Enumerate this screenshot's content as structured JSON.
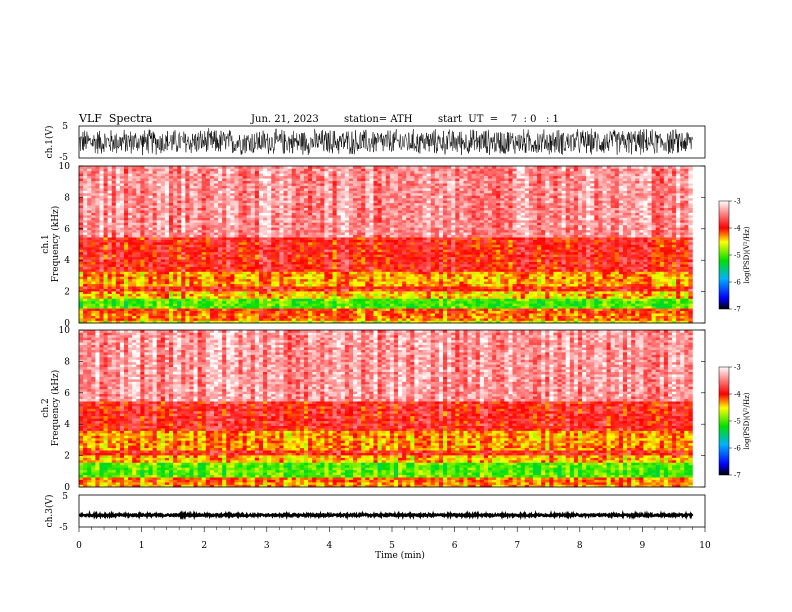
{
  "header": {
    "title": "VLF  Spectra",
    "date": "Jun. 21, 2023",
    "station": "station= ATH",
    "start_ut": "start  UT  =    7  : 0   : 1"
  },
  "chart_data": [
    {
      "type": "line",
      "panel": "ch1-waveform",
      "ylabel": "ch.1(V)",
      "xlim": [
        0,
        10
      ],
      "ylim": [
        -5,
        5
      ],
      "y_ticks": [
        "5",
        "-5"
      ],
      "signal_amplitude": [
        -4.5,
        4.5
      ],
      "data_end_min": 9.8
    },
    {
      "type": "heatmap",
      "panel": "ch1-spectrogram",
      "ylabel": [
        "ch.1",
        "Frequency  (kHz)"
      ],
      "xlim": [
        0,
        10
      ],
      "ylim": [
        0,
        10
      ],
      "y_ticks": [
        "10",
        "8",
        "6",
        "4",
        "2",
        "0"
      ],
      "colorbar": {
        "label": "log(PSD)(V²/Hz)",
        "range": [
          -7,
          -3
        ],
        "ticks": [
          "-3",
          "-4",
          "-5",
          "-6",
          "-7"
        ]
      },
      "bands_khz_log_psd": [
        {
          "f": [
            0,
            0.2
          ],
          "v": -4.6
        },
        {
          "f": [
            0.2,
            0.6
          ],
          "v": -4.2
        },
        {
          "f": [
            0.6,
            0.9
          ],
          "v": -4.1
        },
        {
          "f": [
            0.9,
            1.6
          ],
          "v": -5.0
        },
        {
          "f": [
            1.6,
            2.0
          ],
          "v": -4.4
        },
        {
          "f": [
            2.0,
            2.3
          ],
          "v": -3.9
        },
        {
          "f": [
            2.3,
            3.3
          ],
          "v": -4.3
        },
        {
          "f": [
            3.3,
            5.5
          ],
          "v": -3.9
        },
        {
          "f": [
            5.5,
            10.0
          ],
          "v": -3.4
        }
      ],
      "data_end_min": 9.8
    },
    {
      "type": "heatmap",
      "panel": "ch2-spectrogram",
      "ylabel": [
        "ch.2",
        "Frequency  (kHz)"
      ],
      "xlim": [
        0,
        10
      ],
      "ylim": [
        0,
        10
      ],
      "y_ticks": [
        "10",
        "8",
        "6",
        "4",
        "2",
        "0"
      ],
      "colorbar": {
        "label": "log(PSD)(V²/Hz)",
        "range": [
          -7,
          -3
        ],
        "ticks": [
          "-3",
          "-4",
          "-5",
          "-6",
          "-7"
        ]
      },
      "bands_khz_log_psd": [
        {
          "f": [
            0,
            0.3
          ],
          "v": -4.3
        },
        {
          "f": [
            0.3,
            0.7
          ],
          "v": -4.2
        },
        {
          "f": [
            0.7,
            1.6
          ],
          "v": -5.0
        },
        {
          "f": [
            1.6,
            2.0
          ],
          "v": -4.4
        },
        {
          "f": [
            2.0,
            2.4
          ],
          "v": -3.9
        },
        {
          "f": [
            2.4,
            3.6
          ],
          "v": -4.3
        },
        {
          "f": [
            3.6,
            5.5
          ],
          "v": -3.9
        },
        {
          "f": [
            5.5,
            10.0
          ],
          "v": -3.4
        }
      ],
      "data_end_min": 9.8
    },
    {
      "type": "line",
      "panel": "ch3-waveform",
      "ylabel": "ch.3(V)",
      "xlim": [
        0,
        10
      ],
      "ylim": [
        -5,
        5
      ],
      "y_ticks": [
        "5",
        "-5"
      ],
      "signal_level": -1.3,
      "signal_amplitude": [
        -1.6,
        -1.0
      ],
      "x_ticks": [
        "0",
        "1",
        "2",
        "3",
        "4",
        "5",
        "6",
        "7",
        "8",
        "9",
        "10"
      ],
      "xlabel": "Time  (min)",
      "data_end_min": 9.8
    }
  ]
}
